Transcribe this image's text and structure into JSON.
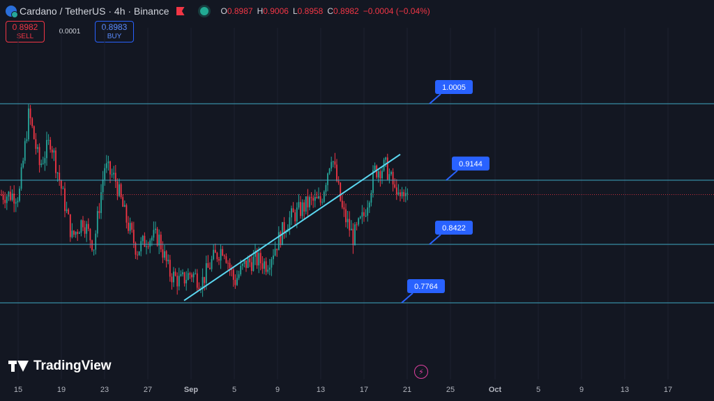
{
  "header": {
    "title": "Cardano / TetherUS · 4h · Binance",
    "ohlc": {
      "o_label": "O",
      "o": "0.8987",
      "h_label": "H",
      "h": "0.9006",
      "l_label": "L",
      "l": "0.8958",
      "c_label": "C",
      "c": "0.8982",
      "change": "−0.0004 (−0.04%)"
    }
  },
  "trade": {
    "sell_price": "0.8982",
    "sell_label": "SELL",
    "spread": "0.0001",
    "buy_price": "0.8983",
    "buy_label": "BUY"
  },
  "logo_text": "TradingView",
  "colors": {
    "up": "#26a69a",
    "down": "#f23645",
    "level": "#3fa9c4",
    "trend": "#5bd7f0",
    "tag": "#2962ff",
    "current": "#f23645"
  },
  "chart_data": {
    "type": "candlestick",
    "timeframe": "4h",
    "x_ticks": [
      "15",
      "19",
      "23",
      "27",
      "Sep",
      "5",
      "9",
      "13",
      "17",
      "21",
      "25",
      "Oct",
      "5",
      "9",
      "13",
      "17"
    ],
    "levels": [
      {
        "label": "1.0005",
        "value": 1.0005
      },
      {
        "label": "0.9144",
        "value": 0.9144
      },
      {
        "label": "0.8422",
        "value": 0.8422
      },
      {
        "label": "0.7764",
        "value": 0.7764
      }
    ],
    "current_price": 0.8982,
    "trendline": {
      "from": {
        "x": "Aug 31",
        "y": 0.779
      },
      "to": {
        "x": "Sep 20",
        "y": 0.9435
      }
    },
    "price_path": [
      [
        "Aug 15",
        0.888
      ],
      [
        "Aug 16",
        0.99
      ],
      [
        "Aug 17",
        0.93
      ],
      [
        "Aug 18",
        0.96
      ],
      [
        "Aug 19",
        0.905
      ],
      [
        "Aug 20",
        0.85
      ],
      [
        "Aug 21",
        0.87
      ],
      [
        "Aug 22",
        0.84
      ],
      [
        "Aug 23",
        0.93
      ],
      [
        "Aug 24",
        0.915
      ],
      [
        "Aug 25",
        0.87
      ],
      [
        "Aug 26",
        0.835
      ],
      [
        "Aug 27",
        0.85
      ],
      [
        "Aug 28",
        0.85
      ],
      [
        "Aug 29",
        0.81
      ],
      [
        "Aug 30",
        0.8
      ],
      [
        "Aug 31",
        0.81
      ],
      [
        "Sep 1",
        0.8
      ],
      [
        "Sep 2",
        0.825
      ],
      [
        "Sep 3",
        0.84
      ],
      [
        "Sep 4",
        0.8
      ],
      [
        "Sep 5",
        0.82
      ],
      [
        "Sep 6",
        0.825
      ],
      [
        "Sep 7",
        0.82
      ],
      [
        "Sep 8",
        0.845
      ],
      [
        "Sep 9",
        0.87
      ],
      [
        "Sep 10",
        0.88
      ],
      [
        "Sep 11",
        0.89
      ],
      [
        "Sep 12",
        0.89
      ],
      [
        "Sep 13",
        0.945
      ],
      [
        "Sep 14",
        0.88
      ],
      [
        "Sep 15",
        0.85
      ],
      [
        "Sep 16",
        0.875
      ],
      [
        "Sep 17",
        0.925
      ],
      [
        "Sep 18",
        0.93
      ],
      [
        "Sep 19",
        0.9
      ],
      [
        "Sep 20",
        0.898
      ]
    ]
  }
}
